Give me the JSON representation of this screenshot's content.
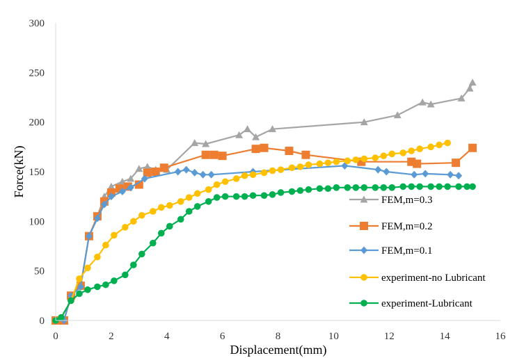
{
  "chart_data": {
    "type": "line",
    "xlabel": "Displacement(mm)",
    "ylabel": "Force(kN)",
    "xlim": [
      0,
      16
    ],
    "ylim": [
      0,
      300
    ],
    "xticks": [
      "0",
      "2",
      "4",
      "6",
      "8",
      "10",
      "12",
      "14",
      "16"
    ],
    "yticks": [
      "0",
      "50",
      "100",
      "150",
      "200",
      "250",
      "300"
    ],
    "grid": false,
    "legend": "right",
    "series": [
      {
        "name": "FEM,m=0.3",
        "color": "#a5a5a5",
        "marker": "triangle",
        "points": [
          [
            0,
            0
          ],
          [
            0.3,
            0
          ],
          [
            0.55,
            25
          ],
          [
            0.9,
            35
          ],
          [
            1.2,
            85
          ],
          [
            1.5,
            105
          ],
          [
            1.75,
            125
          ],
          [
            2.0,
            135
          ],
          [
            2.4,
            140
          ],
          [
            2.7,
            143
          ],
          [
            3.0,
            153
          ],
          [
            3.3,
            155
          ],
          [
            3.6,
            152
          ],
          [
            4.0,
            152
          ],
          [
            5.0,
            179
          ],
          [
            5.4,
            178
          ],
          [
            6.6,
            187
          ],
          [
            6.9,
            193
          ],
          [
            7.2,
            185
          ],
          [
            7.8,
            193
          ],
          [
            11.1,
            200
          ],
          [
            12.3,
            207
          ],
          [
            13.2,
            220
          ],
          [
            13.5,
            218
          ],
          [
            14.6,
            224
          ],
          [
            14.9,
            234
          ],
          [
            15.0,
            240
          ]
        ]
      },
      {
        "name": "FEM,m=0.2",
        "color": "#ed7d31",
        "marker": "square",
        "points": [
          [
            0,
            0
          ],
          [
            0.3,
            0
          ],
          [
            0.55,
            25
          ],
          [
            0.9,
            35
          ],
          [
            1.2,
            85
          ],
          [
            1.5,
            105
          ],
          [
            1.75,
            120
          ],
          [
            2.0,
            129
          ],
          [
            2.3,
            133
          ],
          [
            2.6,
            135
          ],
          [
            3.0,
            137
          ],
          [
            3.3,
            149
          ],
          [
            3.6,
            150
          ],
          [
            3.9,
            154
          ],
          [
            5.4,
            167
          ],
          [
            5.7,
            167
          ],
          [
            6.0,
            166
          ],
          [
            7.2,
            173
          ],
          [
            7.5,
            174
          ],
          [
            8.4,
            171
          ],
          [
            9.0,
            167
          ],
          [
            11.0,
            160
          ],
          [
            12.8,
            160
          ],
          [
            13.0,
            158
          ],
          [
            14.4,
            159
          ],
          [
            15.0,
            174
          ]
        ]
      },
      {
        "name": "FEM,m=0.1",
        "color": "#5b9bd5",
        "marker": "diamond",
        "points": [
          [
            0,
            0
          ],
          [
            0.3,
            0
          ],
          [
            0.55,
            25
          ],
          [
            0.9,
            34
          ],
          [
            1.2,
            85
          ],
          [
            1.5,
            103
          ],
          [
            1.75,
            117
          ],
          [
            2.0,
            125
          ],
          [
            2.4,
            130
          ],
          [
            2.7,
            134
          ],
          [
            3.2,
            143
          ],
          [
            4.4,
            150
          ],
          [
            4.7,
            152
          ],
          [
            5.0,
            149
          ],
          [
            5.3,
            147
          ],
          [
            5.6,
            147
          ],
          [
            7.1,
            150
          ],
          [
            10.4,
            156
          ],
          [
            11.6,
            152
          ],
          [
            11.9,
            150
          ],
          [
            12.9,
            147
          ],
          [
            13.3,
            148
          ],
          [
            14.2,
            147
          ],
          [
            14.5,
            146
          ]
        ]
      },
      {
        "name": "experiment-no Lubricant",
        "color": "#ffc000",
        "marker": "circle",
        "points": [
          [
            0,
            0
          ],
          [
            0.2,
            3
          ],
          [
            0.55,
            20
          ],
          [
            0.85,
            42
          ],
          [
            1.15,
            53
          ],
          [
            1.5,
            64
          ],
          [
            1.8,
            76
          ],
          [
            2.1,
            86
          ],
          [
            2.5,
            94
          ],
          [
            2.8,
            100
          ],
          [
            3.1,
            106
          ],
          [
            3.5,
            110
          ],
          [
            3.8,
            114
          ],
          [
            4.1,
            116
          ],
          [
            4.5,
            120
          ],
          [
            4.8,
            124
          ],
          [
            5.1,
            128
          ],
          [
            5.5,
            132
          ],
          [
            5.8,
            137
          ],
          [
            6.1,
            140
          ],
          [
            6.5,
            143
          ],
          [
            6.8,
            146
          ],
          [
            7.1,
            147
          ],
          [
            7.5,
            149
          ],
          [
            7.8,
            151
          ],
          [
            8.1,
            152
          ],
          [
            8.5,
            154
          ],
          [
            8.8,
            155
          ],
          [
            9.1,
            157
          ],
          [
            9.5,
            158
          ],
          [
            9.8,
            159
          ],
          [
            10.1,
            160
          ],
          [
            10.5,
            161
          ],
          [
            10.8,
            162
          ],
          [
            11.1,
            163
          ],
          [
            11.5,
            164
          ],
          [
            11.8,
            166
          ],
          [
            12.1,
            168
          ],
          [
            12.5,
            169
          ],
          [
            12.8,
            171
          ],
          [
            13.1,
            173
          ],
          [
            13.5,
            175
          ],
          [
            13.8,
            177
          ],
          [
            14.1,
            179
          ]
        ]
      },
      {
        "name": "experiment-Lubricant",
        "color": "#00b050",
        "marker": "circle",
        "points": [
          [
            0,
            0
          ],
          [
            0.2,
            3
          ],
          [
            0.55,
            20
          ],
          [
            0.85,
            27
          ],
          [
            1.15,
            31
          ],
          [
            1.5,
            34
          ],
          [
            1.8,
            36
          ],
          [
            2.1,
            40
          ],
          [
            2.5,
            46
          ],
          [
            2.8,
            56
          ],
          [
            3.1,
            67
          ],
          [
            3.5,
            78
          ],
          [
            3.8,
            88
          ],
          [
            4.1,
            95
          ],
          [
            4.5,
            102
          ],
          [
            4.8,
            110
          ],
          [
            5.1,
            115
          ],
          [
            5.5,
            120
          ],
          [
            5.8,
            124
          ],
          [
            6.1,
            125
          ],
          [
            6.5,
            125
          ],
          [
            6.8,
            125
          ],
          [
            7.1,
            126
          ],
          [
            7.5,
            126
          ],
          [
            7.8,
            127
          ],
          [
            8.1,
            129
          ],
          [
            8.5,
            130
          ],
          [
            8.8,
            131
          ],
          [
            9.1,
            132
          ],
          [
            9.5,
            133
          ],
          [
            9.8,
            133
          ],
          [
            10.1,
            134
          ],
          [
            10.5,
            134
          ],
          [
            10.8,
            134
          ],
          [
            11.1,
            134
          ],
          [
            11.5,
            134
          ],
          [
            11.8,
            134
          ],
          [
            12.1,
            134
          ],
          [
            12.5,
            135
          ],
          [
            12.8,
            135
          ],
          [
            13.1,
            135
          ],
          [
            13.5,
            135
          ],
          [
            13.8,
            135
          ],
          [
            14.1,
            135
          ],
          [
            14.5,
            135
          ],
          [
            14.8,
            135
          ],
          [
            15.0,
            135
          ]
        ]
      }
    ]
  }
}
